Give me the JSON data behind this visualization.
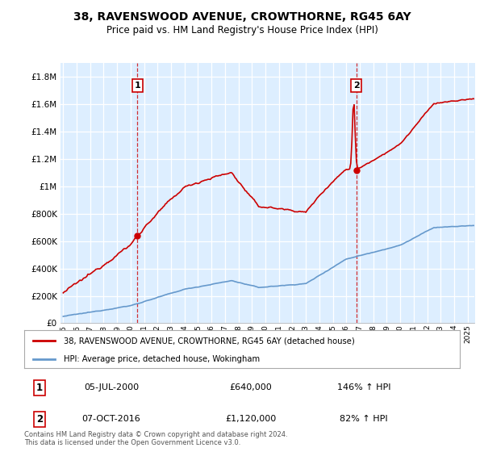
{
  "title": "38, RAVENSWOOD AVENUE, CROWTHORNE, RG45 6AY",
  "subtitle": "Price paid vs. HM Land Registry's House Price Index (HPI)",
  "sale1_year": 2000.5,
  "sale1_price": 640000,
  "sale2_year": 2016.75,
  "sale2_price": 1120000,
  "legend_line1": "38, RAVENSWOOD AVENUE, CROWTHORNE, RG45 6AY (detached house)",
  "legend_line2": "HPI: Average price, detached house, Wokingham",
  "table_row1": [
    "1",
    "05-JUL-2000",
    "£640,000",
    "146% ↑ HPI"
  ],
  "table_row2": [
    "2",
    "07-OCT-2016",
    "£1,120,000",
    "82% ↑ HPI"
  ],
  "footnote": "Contains HM Land Registry data © Crown copyright and database right 2024.\nThis data is licensed under the Open Government Licence v3.0.",
  "hpi_color": "#6699cc",
  "price_color": "#cc0000",
  "dashed_color": "#cc0000",
  "fill_color": "#ddeeff",
  "background_color": "#ffffff",
  "grid_color": "#cccccc",
  "ylim": [
    0,
    1900000
  ],
  "yticks": [
    0,
    200000,
    400000,
    600000,
    800000,
    1000000,
    1200000,
    1400000,
    1600000,
    1800000
  ],
  "xlim_start": 1994.8,
  "xlim_end": 2025.5
}
